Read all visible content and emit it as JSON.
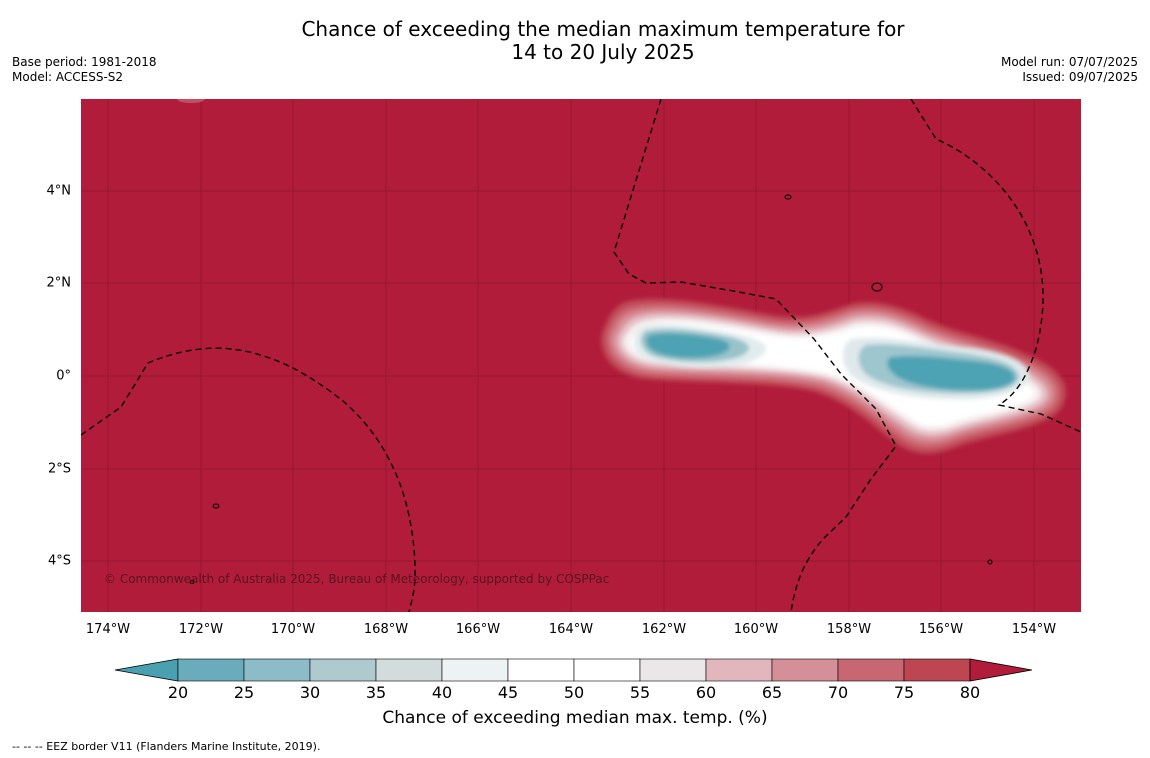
{
  "title_line1": "Chance of exceeding the median maximum temperature for",
  "title_line2": "14 to 20 July 2025",
  "base_period": "Base period: 1981-2018",
  "model": "Model: ACCESS-S2",
  "model_run": "Model run: 07/07/2025",
  "issued": "Issued: 09/07/2025",
  "copyright": "© Commonwealth of Australia 2025, Bureau of Meteorology, supported by COSPPac",
  "x_ticks": [
    "174°W",
    "172°W",
    "170°W",
    "168°W",
    "166°W",
    "164°W",
    "162°W",
    "160°W",
    "158°W",
    "156°W",
    "154°W"
  ],
  "y_ticks": [
    "4°N",
    "2°N",
    "0°",
    "2°S",
    "4°S"
  ],
  "colorbar": {
    "labels": [
      "20",
      "25",
      "30",
      "35",
      "40",
      "45",
      "50",
      "55",
      "60",
      "65",
      "70",
      "75",
      "80"
    ],
    "colors": [
      "#4a9fb0",
      "#6aacbc",
      "#8cbcc8",
      "#aecacf",
      "#d2dcdd",
      "#edf2f2",
      "#ffffff",
      "#ffffff",
      "#ebe7e8",
      "#e1b6bd",
      "#d48f99",
      "#c86672",
      "#be4552",
      "#b11c3a"
    ],
    "title": "Chance of exceeding median max. temp. (%)"
  },
  "legend_note": "--  --  -- EEZ border V11 (Flanders Marine Institute, 2019).",
  "background_color": "#b11c3a"
}
